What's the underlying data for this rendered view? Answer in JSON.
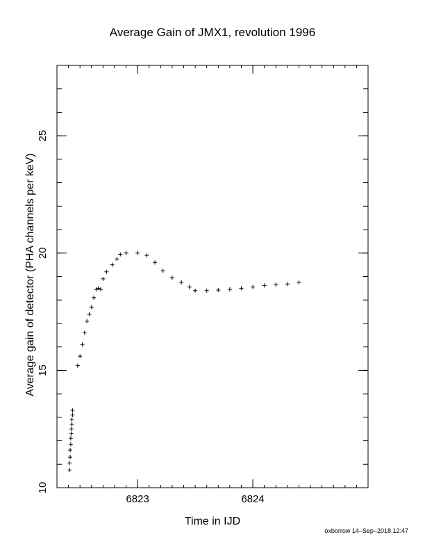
{
  "chart_data": {
    "type": "scatter",
    "title": "Average Gain of JMX1, revolution 1996",
    "xlabel": "Time in IJD",
    "ylabel": "Average gain of detector (PHA channels per keV)",
    "footer": "oxborrow 14–Sep–2018 12:47",
    "marker": "plus",
    "grid": false,
    "xlim": [
      6822.3,
      6825.0
    ],
    "ylim": [
      10,
      28
    ],
    "x_ticks": [
      6823,
      6824
    ],
    "x_tick_labels": [
      "6823",
      "6824"
    ],
    "y_ticks": [
      10,
      15,
      20,
      25
    ],
    "y_tick_labels": [
      "10",
      "15",
      "20",
      "25"
    ],
    "series": [
      {
        "points": [
          [
            6822.41,
            10.75
          ],
          [
            6822.41,
            11.05
          ],
          [
            6822.415,
            11.3
          ],
          [
            6822.415,
            11.6
          ],
          [
            6822.42,
            11.85
          ],
          [
            6822.42,
            12.1
          ],
          [
            6822.425,
            12.3
          ],
          [
            6822.425,
            12.5
          ],
          [
            6822.43,
            12.7
          ],
          [
            6822.43,
            12.9
          ],
          [
            6822.435,
            13.1
          ],
          [
            6822.435,
            13.3
          ],
          [
            6822.48,
            15.2
          ],
          [
            6822.5,
            15.6
          ],
          [
            6822.52,
            16.1
          ],
          [
            6822.54,
            16.6
          ],
          [
            6822.56,
            17.1
          ],
          [
            6822.58,
            17.4
          ],
          [
            6822.6,
            17.7
          ],
          [
            6822.62,
            18.1
          ],
          [
            6822.64,
            18.45
          ],
          [
            6822.66,
            18.5
          ],
          [
            6822.68,
            18.45
          ],
          [
            6822.7,
            18.9
          ],
          [
            6822.73,
            19.2
          ],
          [
            6822.78,
            19.5
          ],
          [
            6822.82,
            19.75
          ],
          [
            6822.85,
            19.95
          ],
          [
            6822.9,
            20.0
          ],
          [
            6823.0,
            20.0
          ],
          [
            6823.08,
            19.9
          ],
          [
            6823.15,
            19.6
          ],
          [
            6823.22,
            19.25
          ],
          [
            6823.3,
            18.95
          ],
          [
            6823.38,
            18.75
          ],
          [
            6823.45,
            18.55
          ],
          [
            6823.5,
            18.4
          ],
          [
            6823.6,
            18.4
          ],
          [
            6823.7,
            18.42
          ],
          [
            6823.8,
            18.45
          ],
          [
            6823.9,
            18.5
          ],
          [
            6824.0,
            18.55
          ],
          [
            6824.1,
            18.62
          ],
          [
            6824.2,
            18.65
          ],
          [
            6824.3,
            18.68
          ],
          [
            6824.4,
            18.75
          ]
        ]
      }
    ]
  }
}
